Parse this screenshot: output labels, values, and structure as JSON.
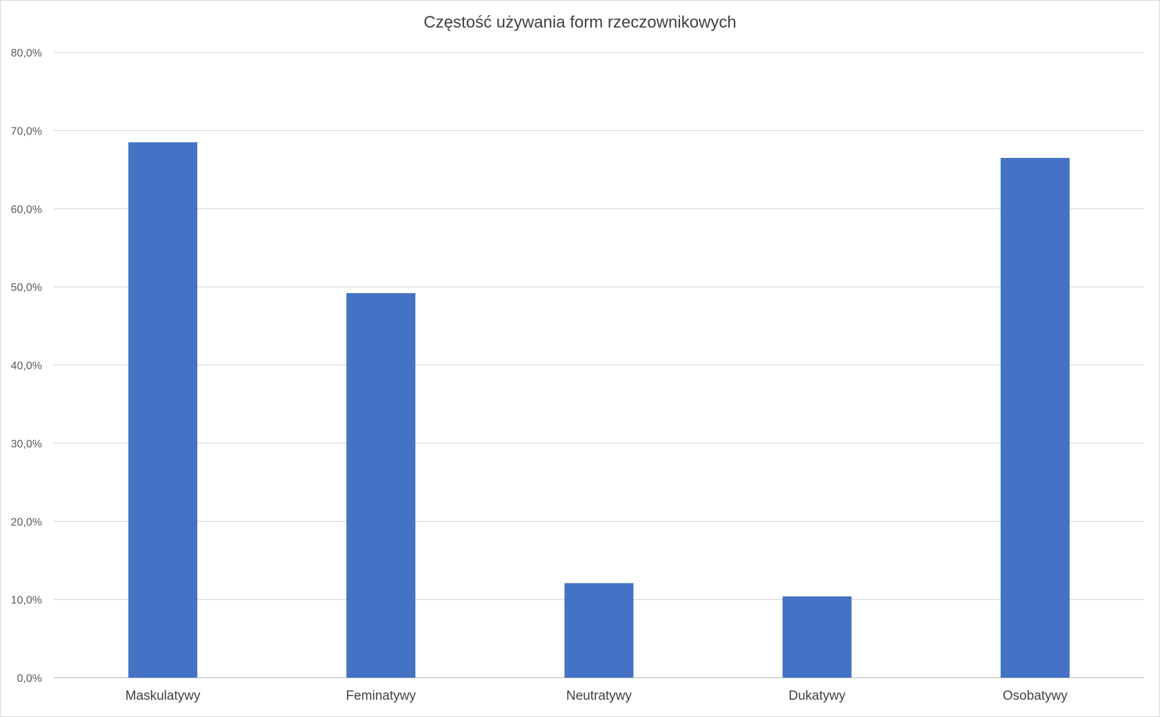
{
  "chart_data": {
    "type": "bar",
    "title": "Częstość używania form rzeczownikowych",
    "xlabel": "",
    "ylabel": "",
    "categories": [
      "Maskulatywy",
      "Feminatywy",
      "Neutratywy",
      "Dukatywy",
      "Osobatywy"
    ],
    "values": [
      68.5,
      49.2,
      12.1,
      10.4,
      66.5
    ],
    "ylim": [
      0,
      80
    ],
    "yticks": [
      0,
      10,
      20,
      30,
      40,
      50,
      60,
      70,
      80
    ],
    "ytick_labels": [
      "0,0%",
      "10,0%",
      "20,0%",
      "30,0%",
      "40,0%",
      "50,0%",
      "60,0%",
      "70,0%",
      "80,0%"
    ],
    "bar_color": "#4472c4",
    "grid": true,
    "legend": "none"
  }
}
